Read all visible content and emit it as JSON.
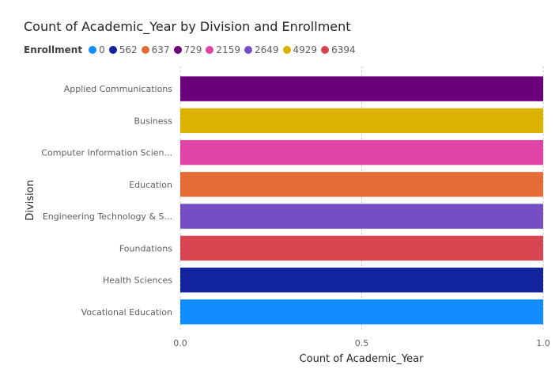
{
  "chart_data": {
    "type": "bar",
    "orientation": "horizontal",
    "title": "Count of Academic_Year by Division and Enrollment",
    "legend_title": "Enrollment",
    "legend_position": "top-left",
    "legend": [
      {
        "label": "0",
        "color": "#118DFF"
      },
      {
        "label": "562",
        "color": "#12239E"
      },
      {
        "label": "637",
        "color": "#E66C37"
      },
      {
        "label": "729",
        "color": "#6B007B"
      },
      {
        "label": "2159",
        "color": "#E044A7"
      },
      {
        "label": "2649",
        "color": "#744EC2"
      },
      {
        "label": "4929",
        "color": "#D9B300"
      },
      {
        "label": "6394",
        "color": "#D64550"
      }
    ],
    "categories": [
      "Applied Communications",
      "Business",
      "Computer Information Scien...",
      "Education",
      "Engineering Technology & S...",
      "Foundations",
      "Health Sciences",
      "Vocational Education"
    ],
    "values": [
      1,
      1,
      1,
      1,
      1,
      1,
      1,
      1
    ],
    "bar_colors": [
      "#6B007B",
      "#D9B300",
      "#E044A7",
      "#E66C37",
      "#744EC2",
      "#D64550",
      "#12239E",
      "#118DFF"
    ],
    "xlabel": "Count of Academic_Year",
    "ylabel": "Division",
    "xlim": [
      0,
      1
    ],
    "xticks": [
      "0.0",
      "0.5",
      "1.0"
    ],
    "grid": true
  }
}
